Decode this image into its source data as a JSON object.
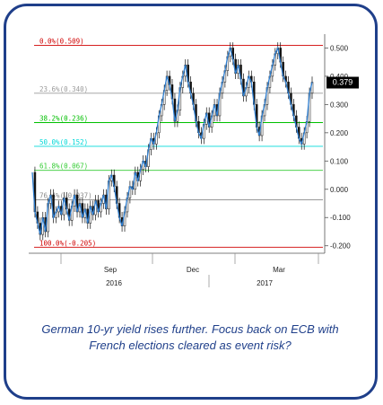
{
  "chart_data": {
    "type": "line",
    "y_axis": {
      "ylim": [
        -0.22,
        0.53
      ],
      "ticks": [
        "0.500",
        "0.400",
        "0.300",
        "0.200",
        "0.100",
        "0.000",
        "-0.100",
        "-0.200"
      ],
      "tick_values": [
        0.5,
        0.4,
        0.3,
        0.2,
        0.1,
        0.0,
        -0.1,
        -0.2
      ],
      "side": "right"
    },
    "x_axis": {
      "months": [
        "Sep",
        "Dec",
        "Mar"
      ],
      "years": [
        "2016",
        "2017"
      ]
    },
    "last_value_label": "0.379",
    "fib_levels": [
      {
        "label": "0.0%(0.509)",
        "value": 0.509,
        "color": "#d00000"
      },
      {
        "label": "23.6%(0.340)",
        "value": 0.34,
        "color": "#9a9a9a"
      },
      {
        "label": "38.2%(0.236)",
        "value": 0.236,
        "color": "#00c000"
      },
      {
        "label": "50.0%(0.152)",
        "value": 0.152,
        "color": "#00d8d8"
      },
      {
        "label": "61.8%(0.067)",
        "value": 0.067,
        "color": "#33cc33"
      },
      {
        "label": "76.4%(-0.037)",
        "value": -0.037,
        "color": "#8a8a8a"
      },
      {
        "label": "100.0%(-0.205)",
        "value": -0.205,
        "color": "#d00000"
      }
    ],
    "series": [
      {
        "style": "candlestick-with-close-line",
        "color": "#2f7fd1",
        "x": [
          0,
          3,
          6,
          9,
          12,
          15,
          18,
          21,
          24,
          27,
          30,
          33,
          36,
          39,
          42,
          45,
          48,
          51,
          54,
          57,
          60,
          63,
          66,
          69,
          72,
          75,
          78,
          81,
          84,
          87,
          90,
          93,
          96,
          99,
          102,
          105,
          108,
          111,
          114,
          117,
          120,
          123,
          126,
          129,
          132,
          135,
          138,
          141,
          144,
          147,
          150,
          153,
          156,
          159,
          162,
          165,
          168,
          171,
          174,
          177,
          180,
          183,
          186,
          189,
          192,
          195,
          198,
          201,
          204,
          207,
          210,
          213,
          216,
          219,
          222,
          225,
          228,
          231,
          234,
          237,
          240,
          243,
          246,
          249,
          252,
          255,
          258,
          261,
          264,
          267,
          270,
          273,
          276,
          279,
          282,
          285,
          288,
          291,
          294,
          297,
          300,
          303,
          306,
          309,
          312,
          315,
          318
        ],
        "values": [
          0.06,
          -0.08,
          -0.12,
          -0.16,
          -0.1,
          -0.15,
          -0.05,
          -0.02,
          -0.1,
          -0.08,
          -0.06,
          -0.09,
          -0.03,
          -0.07,
          -0.11,
          -0.06,
          -0.02,
          -0.08,
          -0.05,
          -0.1,
          -0.07,
          -0.12,
          -0.06,
          -0.09,
          -0.04,
          -0.08,
          -0.05,
          -0.02,
          -0.07,
          0.03,
          0.05,
          0.01,
          -0.05,
          -0.1,
          -0.13,
          -0.08,
          -0.03,
          0.01,
          0.0,
          0.06,
          0.03,
          0.07,
          0.1,
          0.08,
          0.14,
          0.18,
          0.16,
          0.2,
          0.26,
          0.3,
          0.35,
          0.4,
          0.37,
          0.32,
          0.24,
          0.28,
          0.36,
          0.4,
          0.44,
          0.38,
          0.34,
          0.3,
          0.24,
          0.2,
          0.18,
          0.23,
          0.27,
          0.22,
          0.26,
          0.3,
          0.26,
          0.34,
          0.38,
          0.42,
          0.47,
          0.5,
          0.46,
          0.41,
          0.44,
          0.39,
          0.33,
          0.36,
          0.4,
          0.38,
          0.3,
          0.22,
          0.19,
          0.26,
          0.3,
          0.36,
          0.4,
          0.44,
          0.48,
          0.5,
          0.45,
          0.4,
          0.38,
          0.34,
          0.3,
          0.26,
          0.22,
          0.18,
          0.16,
          0.2,
          0.24,
          0.34,
          0.379
        ]
      }
    ]
  },
  "caption": {
    "line1": "German 10-yr yield rises further. Focus back on ECB with",
    "line2": "French elections cleared as event risk?"
  }
}
